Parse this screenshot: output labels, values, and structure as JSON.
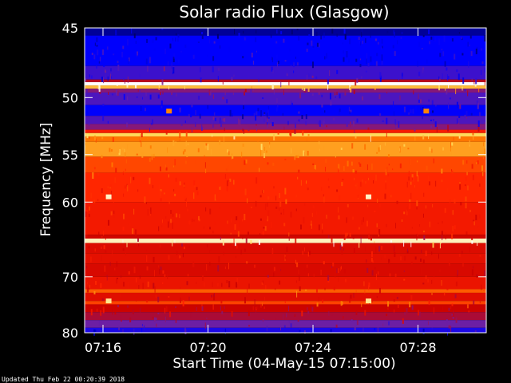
{
  "chart_data": {
    "type": "heatmap",
    "title": "Solar radio Flux (Glasgow)",
    "xlabel": "Start Time (04-May-15 07:15:00)",
    "ylabel": "Frequency [MHz]",
    "x_unit": "minutes after 07:00",
    "xlim": [
      15.3,
      30.6
    ],
    "x_ticks": [
      {
        "value": 16,
        "label": "07:16"
      },
      {
        "value": 20,
        "label": "07:20"
      },
      {
        "value": 24,
        "label": "07:24"
      },
      {
        "value": 28,
        "label": "07:28"
      }
    ],
    "ylim": [
      45,
      80
    ],
    "y_ticks": [
      {
        "value": 45,
        "label": "45"
      },
      {
        "value": 50,
        "label": "50"
      },
      {
        "value": 55,
        "label": "55"
      },
      {
        "value": 60,
        "label": "60"
      },
      {
        "value": 70,
        "label": "70"
      },
      {
        "value": 80,
        "label": "80"
      }
    ],
    "y_scale": "reciprocal",
    "colormap": [
      "#000060",
      "#0000ff",
      "#7020a0",
      "#c80000",
      "#ff2000",
      "#ff8000",
      "#ffe060",
      "#ffffff"
    ],
    "bands": [
      {
        "from": 45.0,
        "to": 45.5,
        "intensity": 0.05
      },
      {
        "from": 45.5,
        "to": 47.6,
        "intensity": 0.14
      },
      {
        "from": 47.6,
        "to": 48.6,
        "intensity": 0.22
      },
      {
        "from": 48.6,
        "to": 48.8,
        "intensity": 0.4
      },
      {
        "from": 48.8,
        "to": 49.05,
        "intensity": 1.0
      },
      {
        "from": 49.05,
        "to": 49.3,
        "intensity": 0.8
      },
      {
        "from": 49.3,
        "to": 49.6,
        "intensity": 0.32
      },
      {
        "from": 49.6,
        "to": 50.6,
        "intensity": 0.24
      },
      {
        "from": 50.6,
        "to": 51.5,
        "intensity": 0.14
      },
      {
        "from": 51.5,
        "to": 52.2,
        "intensity": 0.24
      },
      {
        "from": 52.2,
        "to": 52.7,
        "intensity": 0.32
      },
      {
        "from": 52.7,
        "to": 53.0,
        "intensity": 0.55
      },
      {
        "from": 53.0,
        "to": 53.3,
        "intensity": 0.85
      },
      {
        "from": 53.3,
        "to": 53.8,
        "intensity": 0.7
      },
      {
        "from": 53.8,
        "to": 55.2,
        "intensity": 0.76
      },
      {
        "from": 55.2,
        "to": 56.8,
        "intensity": 0.63
      },
      {
        "from": 56.8,
        "to": 60.0,
        "intensity": 0.58
      },
      {
        "from": 60.0,
        "to": 64.0,
        "intensity": 0.54
      },
      {
        "from": 64.0,
        "to": 64.5,
        "intensity": 0.45
      },
      {
        "from": 64.5,
        "to": 65.1,
        "intensity": 0.94
      },
      {
        "from": 65.1,
        "to": 66.5,
        "intensity": 0.48
      },
      {
        "from": 66.5,
        "to": 68.0,
        "intensity": 0.5
      },
      {
        "from": 68.0,
        "to": 70.0,
        "intensity": 0.47
      },
      {
        "from": 70.0,
        "to": 72.0,
        "intensity": 0.52
      },
      {
        "from": 72.0,
        "to": 72.6,
        "intensity": 0.66
      },
      {
        "from": 72.6,
        "to": 74.0,
        "intensity": 0.49
      },
      {
        "from": 74.0,
        "to": 74.6,
        "intensity": 0.62
      },
      {
        "from": 74.6,
        "to": 76.0,
        "intensity": 0.44
      },
      {
        "from": 76.0,
        "to": 77.5,
        "intensity": 0.38
      },
      {
        "from": 77.5,
        "to": 79.0,
        "intensity": 0.28
      },
      {
        "from": 79.0,
        "to": 80.0,
        "intensity": 0.18
      }
    ],
    "hotspots": [
      {
        "x": 18.5,
        "y": 51.1,
        "intensity": 0.72
      },
      {
        "x": 28.3,
        "y": 51.1,
        "intensity": 0.72
      },
      {
        "x": 16.2,
        "y": 59.4,
        "intensity": 0.95
      },
      {
        "x": 26.1,
        "y": 59.4,
        "intensity": 0.95
      },
      {
        "x": 16.2,
        "y": 74.0,
        "intensity": 0.9
      },
      {
        "x": 26.1,
        "y": 74.0,
        "intensity": 0.9
      }
    ]
  },
  "footer": {
    "updated": "Updated Thu Feb 22 00:20:39 2018"
  }
}
